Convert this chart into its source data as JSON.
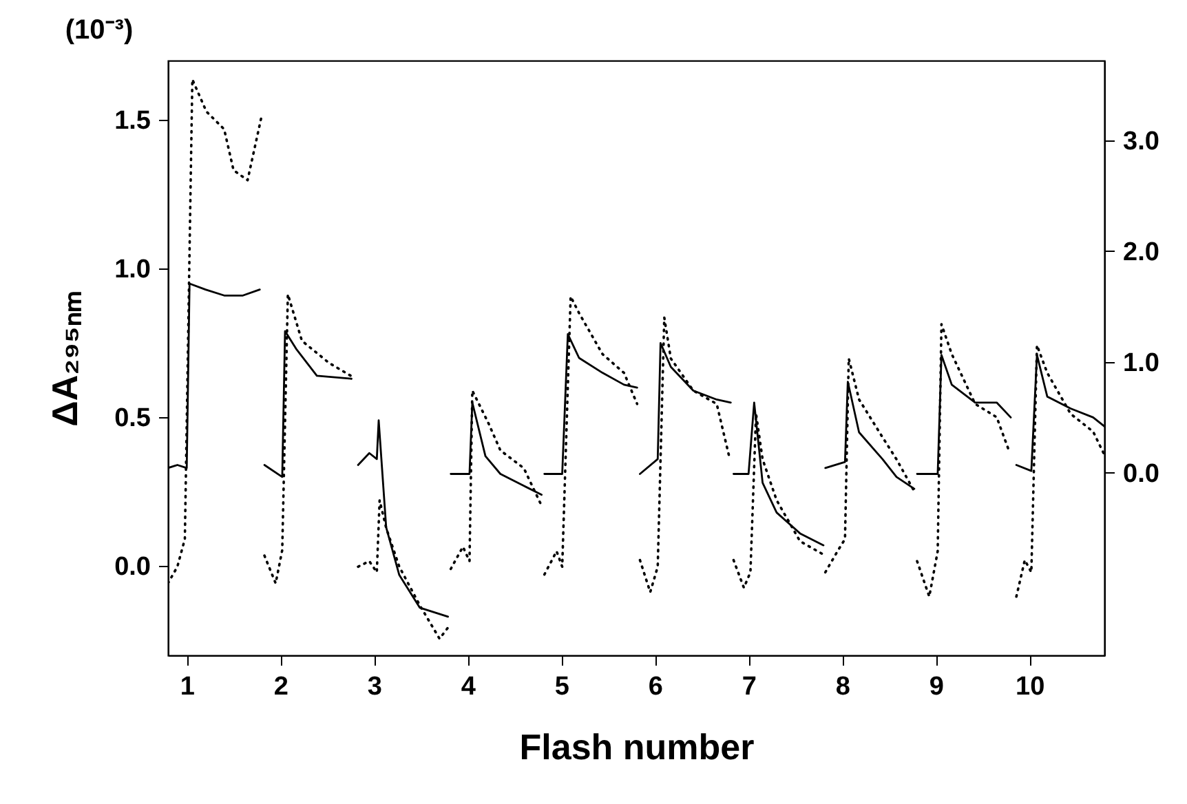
{
  "chart_data": {
    "type": "line",
    "xlabel": "Flash number",
    "ylabel": "ΔA₂₉₅ₙₘ",
    "annotations": [
      "(10⁻³)"
    ],
    "xlim": [
      0.8,
      10.8
    ],
    "xticks": [
      1,
      2,
      3,
      4,
      5,
      6,
      7,
      8,
      9,
      10
    ],
    "ylim": [
      -0.3,
      1.7
    ],
    "yticks": [
      {
        "value": 0,
        "label": "0.0"
      },
      {
        "value": 0.5,
        "label": "0.5"
      },
      {
        "value": 1,
        "label": "1.0"
      },
      {
        "value": 1.5,
        "label": "1.5"
      }
    ],
    "y2lim": [
      -1.65,
      3.72
    ],
    "y2ticks": [
      {
        "value": 0,
        "label": "0.0"
      },
      {
        "value": 1,
        "label": "1.0"
      },
      {
        "value": 2,
        "label": "2.0"
      },
      {
        "value": 3,
        "label": "3.0"
      }
    ],
    "grid": false,
    "series": [
      {
        "color": "#000000",
        "line_style": "solid",
        "x": [
          0.8,
          0.9,
          1.0,
          1.03,
          1.2,
          1.4,
          1.6,
          1.78,
          1.81,
          1.83,
          2.02,
          2.05,
          2.17,
          2.39,
          2.76,
          2.8,
          2.83,
          2.95,
          3.03,
          3.05,
          3.13,
          3.27,
          3.49,
          3.79,
          3.8,
          3.82,
          4.02,
          4.05,
          4.19,
          4.35,
          4.6,
          4.79,
          4.8,
          4.82,
          5.01,
          5.07,
          5.19,
          5.44,
          5.67,
          5.81,
          5.82,
          5.84,
          6.03,
          6.06,
          6.17,
          6.41,
          6.66,
          6.81,
          6.82,
          6.84,
          7.0,
          7.06,
          7.15,
          7.3,
          7.55,
          7.8,
          7.81,
          7.82,
          8.03,
          8.06,
          8.18,
          8.43,
          8.58,
          8.77,
          8.78,
          8.8,
          9.02,
          9.06,
          9.17,
          9.42,
          9.65,
          9.8,
          9.83,
          9.86,
          10.02,
          10.08,
          10.19,
          10.44,
          10.68,
          10.8
        ],
        "values": [
          0.33,
          0.34,
          0.33,
          0.95,
          0.93,
          0.91,
          0.91,
          0.93,
          null,
          0.34,
          0.3,
          0.79,
          0.73,
          0.64,
          0.63,
          null,
          0.34,
          0.38,
          0.36,
          0.49,
          0.13,
          -0.03,
          -0.14,
          -0.17,
          null,
          0.31,
          0.31,
          0.55,
          0.37,
          0.31,
          0.27,
          0.24,
          null,
          0.31,
          0.31,
          0.78,
          0.7,
          0.65,
          0.61,
          0.6,
          null,
          0.31,
          0.36,
          0.75,
          0.67,
          0.59,
          0.56,
          0.55,
          null,
          0.31,
          0.31,
          0.55,
          0.28,
          0.18,
          0.11,
          0.07,
          null,
          0.33,
          0.35,
          0.62,
          0.45,
          0.36,
          0.3,
          0.26,
          null,
          0.31,
          0.31,
          0.71,
          0.61,
          0.55,
          0.55,
          0.5,
          null,
          0.34,
          0.32,
          0.71,
          0.57,
          0.53,
          0.5,
          0.47
        ]
      },
      {
        "color": "#000000",
        "line_style": "dotted",
        "axis": "y2",
        "x": [
          0.8,
          0.9,
          0.98,
          1.06,
          1.21,
          1.4,
          1.5,
          1.65,
          1.8,
          1.81,
          1.83,
          1.95,
          2.02,
          2.08,
          2.23,
          2.52,
          2.76,
          2.8,
          2.83,
          2.95,
          3.03,
          3.06,
          3.13,
          3.27,
          3.49,
          3.7,
          3.79,
          3.8,
          3.82,
          3.95,
          4.02,
          4.05,
          4.22,
          4.35,
          4.6,
          4.79,
          4.8,
          4.82,
          4.95,
          5.01,
          5.1,
          5.19,
          5.44,
          5.67,
          5.81,
          5.82,
          5.84,
          5.95,
          6.03,
          6.1,
          6.17,
          6.41,
          6.66,
          6.8,
          6.82,
          6.84,
          6.95,
          7.02,
          7.08,
          7.15,
          7.3,
          7.55,
          7.8,
          7.81,
          7.82,
          7.95,
          8.03,
          8.07,
          8.18,
          8.43,
          8.58,
          8.77,
          8.78,
          8.8,
          8.93,
          9.02,
          9.06,
          9.17,
          9.42,
          9.65,
          9.78,
          9.83,
          9.86,
          9.95,
          10.02,
          10.08,
          10.19,
          10.44,
          10.68,
          10.8
        ],
        "values": [
          -1.0,
          -0.85,
          -0.6,
          3.55,
          3.26,
          3.1,
          2.73,
          2.64,
          3.22,
          null,
          -0.75,
          -1.0,
          -0.7,
          1.61,
          1.19,
          0.99,
          0.87,
          null,
          -0.85,
          -0.8,
          -0.9,
          -0.25,
          -0.5,
          -0.85,
          -1.2,
          -1.5,
          -1.4,
          null,
          -0.87,
          -0.67,
          -0.8,
          0.74,
          0.45,
          0.2,
          0.04,
          -0.3,
          null,
          -0.92,
          -0.71,
          -0.85,
          1.59,
          1.44,
          1.07,
          0.9,
          0.62,
          null,
          -0.79,
          -1.08,
          -0.85,
          1.4,
          1.03,
          0.74,
          0.62,
          0.12,
          null,
          -0.79,
          -1.04,
          -0.9,
          0.53,
          0.12,
          -0.25,
          -0.62,
          -0.74,
          null,
          -0.9,
          -0.71,
          -0.6,
          1.03,
          0.66,
          0.32,
          0.12,
          -0.17,
          null,
          -0.8,
          -1.12,
          -0.71,
          1.34,
          1.07,
          0.62,
          0.5,
          0.2,
          null,
          -1.12,
          -0.79,
          -0.9,
          1.15,
          0.9,
          0.53,
          0.37,
          0.16
        ]
      }
    ]
  }
}
